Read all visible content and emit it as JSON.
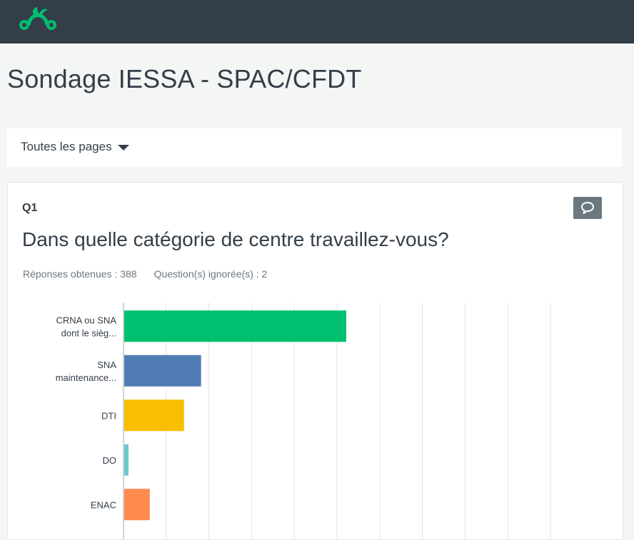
{
  "header": {
    "logo_icon": "surveymonkey-logo-icon"
  },
  "page": {
    "title": "Sondage IESSA - SPAC/CFDT"
  },
  "filter": {
    "label": "Toutes les pages",
    "icon": "caret-down-icon"
  },
  "question": {
    "number": "Q1",
    "title": "Dans quelle catégorie de centre travaillez-vous?",
    "responses_text": "Réponses obtenues : 388",
    "skipped_text": "Question(s) ignorée(s) : 2",
    "comment_icon": "speech-bubble-icon"
  },
  "chart_data": {
    "type": "bar",
    "orientation": "horizontal",
    "categories": [
      [
        "CRNA ou SNA",
        "dont le sièg..."
      ],
      [
        "SNA",
        "maintenance..."
      ],
      [
        "DTI"
      ],
      [
        "DO"
      ],
      [
        "ENAC"
      ]
    ],
    "values": [
      52,
      18,
      14,
      1,
      6
    ],
    "colors": [
      "#00bf6f",
      "#507cb6",
      "#f9be00",
      "#6bc8cd",
      "#ff8b4f"
    ],
    "xlim": [
      0,
      100
    ],
    "grid": true
  }
}
